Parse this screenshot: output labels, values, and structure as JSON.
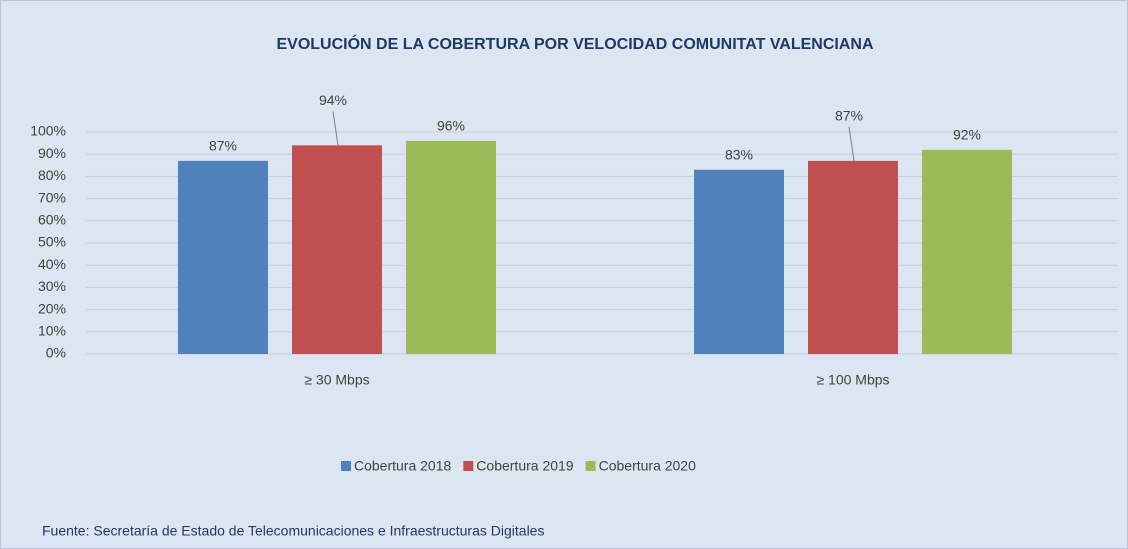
{
  "chart_data": {
    "type": "bar",
    "title": "EVOLUCIÓN DE LA COBERTURA POR VELOCIDAD  COMUNITAT VALENCIANA",
    "categories": [
      "≥ 30 Mbps",
      "≥ 100 Mbps"
    ],
    "series": [
      {
        "name": "Cobertura 2018",
        "color": "#4f81bd",
        "values": [
          87,
          83
        ],
        "value_labels": [
          "87%",
          "83%"
        ]
      },
      {
        "name": "Cobertura 2019",
        "color": "#c0504d",
        "values": [
          94,
          87
        ],
        "value_labels": [
          "94%",
          "87%"
        ]
      },
      {
        "name": "Cobertura 2020",
        "color": "#9bbb59",
        "values": [
          96,
          92
        ],
        "value_labels": [
          "96%",
          "92%"
        ]
      }
    ],
    "ylim": [
      0,
      100
    ],
    "yticks": [
      {
        "value": 0,
        "label": "0%"
      },
      {
        "value": 10,
        "label": "10%"
      },
      {
        "value": 20,
        "label": "20%"
      },
      {
        "value": 30,
        "label": "30%"
      },
      {
        "value": 40,
        "label": "40%"
      },
      {
        "value": 50,
        "label": "50%"
      },
      {
        "value": 60,
        "label": "60%"
      },
      {
        "value": 70,
        "label": "70%"
      },
      {
        "value": 80,
        "label": "80%"
      },
      {
        "value": 90,
        "label": "90%"
      },
      {
        "value": 100,
        "label": "100%"
      }
    ],
    "grid": true,
    "legend": "bottom",
    "source": "Fuente: Secretaría de Estado de Telecomunicaciones e Infraestructuras Digitales"
  }
}
